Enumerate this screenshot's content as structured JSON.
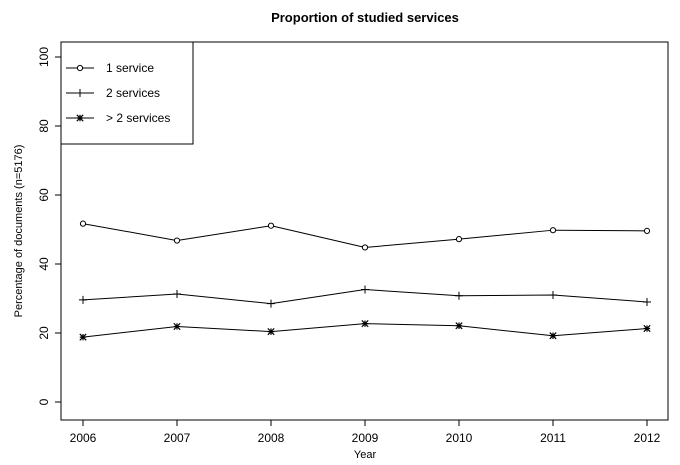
{
  "chart_data": {
    "type": "line",
    "title": "Proportion of studied services",
    "xlabel": "Year",
    "ylabel": "Percentage of documents (n=5176)",
    "x": [
      2006,
      2007,
      2008,
      2009,
      2010,
      2011,
      2012
    ],
    "xlim": [
      2006,
      2012
    ],
    "ylim": [
      0,
      100
    ],
    "yticks": [
      0,
      20,
      40,
      60,
      80,
      100
    ],
    "grid": false,
    "legend_position": "top-left",
    "series": [
      {
        "name": "1 service",
        "marker": "circle",
        "values": [
          51.7,
          46.8,
          51.1,
          44.8,
          47.2,
          49.8,
          49.6
        ]
      },
      {
        "name": "2 services",
        "marker": "plus",
        "values": [
          29.6,
          31.3,
          28.5,
          32.6,
          30.8,
          31.0,
          29.0
        ]
      },
      {
        "name": "> 2 services",
        "marker": "asterisk",
        "values": [
          18.8,
          21.9,
          20.4,
          22.7,
          22.1,
          19.2,
          21.3
        ]
      }
    ],
    "colors": {
      "line": "#000000",
      "background": "#ffffff"
    }
  }
}
